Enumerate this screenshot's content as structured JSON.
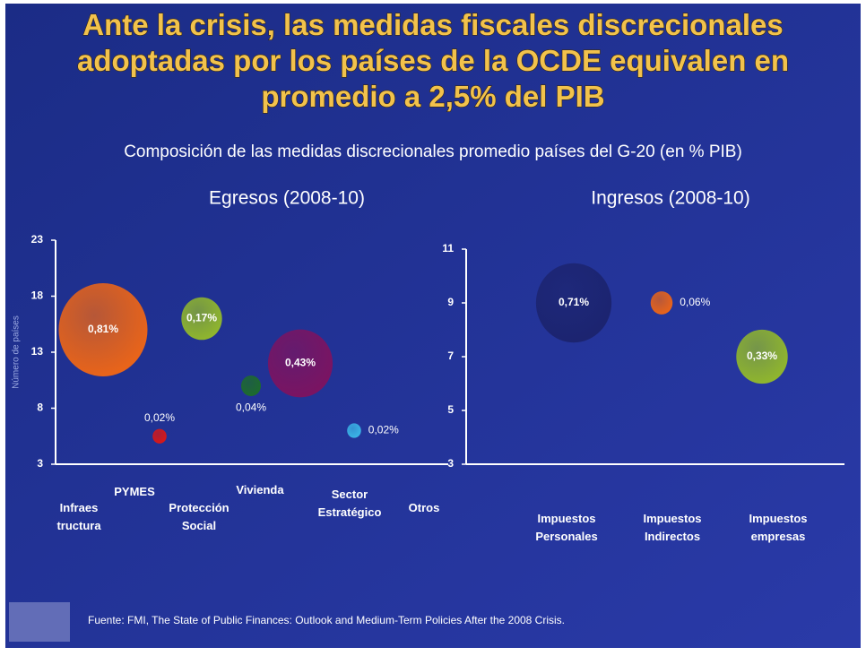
{
  "title": "Ante la crisis, las medidas fiscales discrecionales adoptadas por los países de la OCDE equivalen en promedio a 2,5% del PIB",
  "subtitle": "Composición de las medidas discrecionales promedio países del G-20 (en % PIB)",
  "source": "Fuente: FMI, The State of Public Finances: Outlook and Medium-Term Policies After the 2008 Crisis.",
  "chart_data": [
    {
      "type": "bubble",
      "title": "Egresos (2008-10)",
      "y_label": "Número de países",
      "categories": [
        "Infraes tructura",
        "PYMES",
        "Protección Social",
        "Vivienda",
        "Sector Estratégico",
        "Otros"
      ],
      "values": [
        15,
        5.5,
        16,
        10,
        12,
        6
      ],
      "sizes": [
        0.81,
        0.02,
        0.17,
        0.04,
        0.43,
        0.02
      ],
      "value_labels": [
        "0,81%",
        "0,02%",
        "0,17%",
        "0,04%",
        "0,43%",
        "0,02%"
      ],
      "colors": [
        "#e8641a",
        "#d81818",
        "#8fb52e",
        "#1d6b2c",
        "#7a1462",
        "#3ab4e6"
      ],
      "ylim": [
        3,
        23
      ],
      "yticks": [
        3,
        8,
        13,
        18,
        23
      ]
    },
    {
      "type": "bubble",
      "title": "Ingresos (2008-10)",
      "categories": [
        "Impuestos Personales",
        "Impuestos Indirectos",
        "Impuestos empresas"
      ],
      "values": [
        9,
        9,
        7
      ],
      "sizes": [
        0.71,
        0.06,
        0.33
      ],
      "value_labels": [
        "0,71%",
        "0,06%",
        "0,33%"
      ],
      "colors": [
        "#1c2470",
        "#e8641a",
        "#8fb52e"
      ],
      "ylim": [
        3,
        11
      ],
      "yticks": [
        3,
        5,
        7,
        9,
        11
      ]
    }
  ]
}
